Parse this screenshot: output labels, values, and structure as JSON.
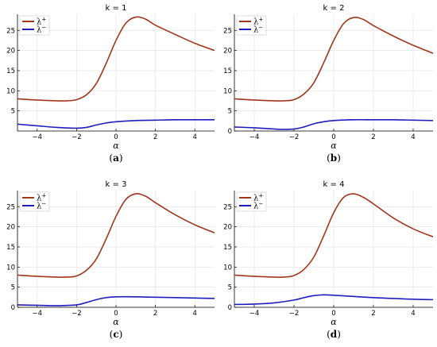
{
  "colors": {
    "lambda_plus": "#A0361B",
    "lambda_minus": "#1E1EBE",
    "grid": "#E4E4E4",
    "axis": "#000000"
  },
  "chart_data": [
    {
      "type": "line",
      "panel": "(a)",
      "panel_letter": "a",
      "title": "k = 1",
      "xlabel": "α",
      "ylabel": "",
      "xlim": [
        -5,
        5
      ],
      "ylim": [
        0,
        29
      ],
      "xticks": [
        -4,
        -2,
        0,
        2,
        4
      ],
      "xtick_labels": [
        "−4",
        "−2",
        "0",
        "2",
        "4"
      ],
      "yticks": [
        5,
        10,
        15,
        20,
        25
      ],
      "ytick_labels": [
        "5",
        "10",
        "15",
        "20",
        "25"
      ],
      "grid": true,
      "legend": "top-left",
      "series": [
        {
          "name": "λ+",
          "label_base": "λ",
          "label_sup": "+",
          "color_key": "lambda_plus",
          "x": [
            -5,
            -4,
            -3,
            -2.5,
            -2,
            -1.5,
            -1,
            -0.5,
            0,
            0.5,
            1,
            1.5,
            2,
            3,
            4,
            5
          ],
          "y": [
            8.0,
            7.7,
            7.5,
            7.5,
            7.8,
            9.0,
            11.8,
            16.8,
            22.5,
            26.8,
            28.3,
            27.8,
            26.3,
            24.0,
            21.8,
            20.0
          ]
        },
        {
          "name": "λ−",
          "label_base": "λ",
          "label_sup": "−",
          "color_key": "lambda_minus",
          "x": [
            -5,
            -4,
            -3,
            -2,
            -1.5,
            -1,
            -0.5,
            0,
            1,
            2,
            3,
            4,
            5
          ],
          "y": [
            1.7,
            1.3,
            0.9,
            0.7,
            0.9,
            1.5,
            2.0,
            2.3,
            2.6,
            2.7,
            2.8,
            2.8,
            2.8
          ]
        }
      ]
    },
    {
      "type": "line",
      "panel": "(b)",
      "panel_letter": "b",
      "title": "k = 2",
      "xlabel": "α",
      "ylabel": "",
      "xlim": [
        -5,
        5
      ],
      "ylim": [
        0,
        29
      ],
      "xticks": [
        -4,
        -2,
        0,
        2,
        4
      ],
      "xtick_labels": [
        "−4",
        "−2",
        "0",
        "2",
        "4"
      ],
      "yticks": [
        0,
        5,
        10,
        15,
        20,
        25
      ],
      "ytick_labels": [
        "0",
        "5",
        "10",
        "15",
        "20",
        "25"
      ],
      "grid": true,
      "legend": "top-left",
      "series": [
        {
          "name": "λ+",
          "label_base": "λ",
          "label_sup": "+",
          "color_key": "lambda_plus",
          "x": [
            -5,
            -4,
            -3,
            -2.5,
            -2,
            -1.5,
            -1,
            -0.5,
            0,
            0.5,
            1,
            1.5,
            2,
            3,
            4,
            5
          ],
          "y": [
            8.0,
            7.7,
            7.5,
            7.5,
            7.8,
            9.2,
            12.0,
            17.0,
            22.5,
            26.7,
            28.2,
            27.7,
            26.2,
            23.6,
            21.3,
            19.3
          ]
        },
        {
          "name": "λ−",
          "label_base": "λ",
          "label_sup": "−",
          "color_key": "lambda_minus",
          "x": [
            -5,
            -4,
            -3,
            -2.5,
            -2,
            -1.5,
            -1,
            -0.5,
            0,
            1,
            2,
            3,
            4,
            5
          ],
          "y": [
            1.0,
            0.8,
            0.5,
            0.4,
            0.5,
            1.0,
            1.8,
            2.3,
            2.6,
            2.8,
            2.8,
            2.8,
            2.7,
            2.6
          ]
        }
      ]
    },
    {
      "type": "line",
      "panel": "(c)",
      "panel_letter": "c",
      "title": "k = 3",
      "xlabel": "α",
      "ylabel": "",
      "xlim": [
        -5,
        5
      ],
      "ylim": [
        0,
        29
      ],
      "xticks": [
        -4,
        -2,
        0,
        2,
        4
      ],
      "xtick_labels": [
        "−4",
        "−2",
        "0",
        "2",
        "4"
      ],
      "yticks": [
        0,
        5,
        10,
        15,
        20,
        25
      ],
      "ytick_labels": [
        "0",
        "5",
        "10",
        "15",
        "20",
        "25"
      ],
      "grid": true,
      "legend": "top-left",
      "series": [
        {
          "name": "λ+",
          "label_base": "λ",
          "label_sup": "+",
          "color_key": "lambda_plus",
          "x": [
            -5,
            -4,
            -3,
            -2.5,
            -2,
            -1.5,
            -1,
            -0.5,
            0,
            0.5,
            1,
            1.5,
            2,
            3,
            4,
            5
          ],
          "y": [
            8.0,
            7.7,
            7.5,
            7.5,
            7.8,
            9.2,
            12.0,
            17.0,
            22.6,
            26.8,
            28.2,
            27.6,
            26.0,
            23.0,
            20.5,
            18.5
          ]
        },
        {
          "name": "λ−",
          "label_base": "λ",
          "label_sup": "−",
          "color_key": "lambda_minus",
          "x": [
            -5,
            -4,
            -3,
            -2,
            -1.5,
            -1,
            -0.5,
            0,
            1,
            2,
            3,
            4,
            5
          ],
          "y": [
            0.6,
            0.5,
            0.4,
            0.6,
            1.2,
            1.9,
            2.4,
            2.6,
            2.6,
            2.5,
            2.4,
            2.3,
            2.2
          ]
        }
      ]
    },
    {
      "type": "line",
      "panel": "(d)",
      "panel_letter": "d",
      "title": "k = 4",
      "xlabel": "α",
      "ylabel": "",
      "xlim": [
        -5,
        5
      ],
      "ylim": [
        0,
        29
      ],
      "xticks": [
        -4,
        -2,
        0,
        2,
        4
      ],
      "xtick_labels": [
        "−4",
        "−2",
        "0",
        "2",
        "4"
      ],
      "yticks": [
        0,
        5,
        10,
        15,
        20,
        25
      ],
      "ytick_labels": [
        "0",
        "5",
        "10",
        "15",
        "20",
        "25"
      ],
      "grid": true,
      "legend": "top-left",
      "series": [
        {
          "name": "λ+",
          "label_base": "λ",
          "label_sup": "+",
          "color_key": "lambda_plus",
          "x": [
            -5,
            -4,
            -3,
            -2.5,
            -2,
            -1.5,
            -1,
            -0.5,
            0,
            0.5,
            1,
            1.5,
            2,
            3,
            4,
            5
          ],
          "y": [
            8.0,
            7.7,
            7.5,
            7.5,
            7.9,
            9.4,
            12.5,
            17.8,
            23.5,
            27.3,
            28.2,
            27.3,
            25.7,
            22.2,
            19.5,
            17.5
          ]
        },
        {
          "name": "λ−",
          "label_base": "λ",
          "label_sup": "−",
          "color_key": "lambda_minus",
          "x": [
            -5,
            -4,
            -3,
            -2,
            -1.5,
            -1,
            -0.5,
            0,
            1,
            2,
            3,
            4,
            5
          ],
          "y": [
            0.7,
            0.8,
            1.1,
            1.8,
            2.4,
            2.9,
            3.1,
            3.0,
            2.7,
            2.4,
            2.2,
            2.0,
            1.9
          ]
        }
      ]
    }
  ]
}
